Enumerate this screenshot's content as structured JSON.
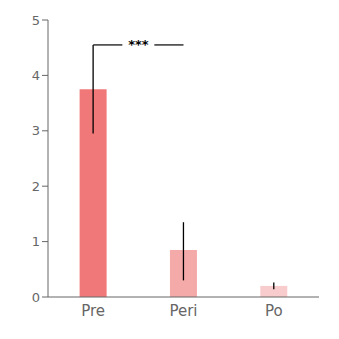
{
  "chart_data": {
    "type": "bar",
    "categories": [
      "Pre",
      "Peri",
      "Po"
    ],
    "values": [
      3.75,
      0.85,
      0.2
    ],
    "errors_upper": [
      0.8,
      0.5,
      0.06
    ],
    "errors_lower": [
      0.8,
      0.55,
      0.06
    ],
    "colors": [
      "#F07878",
      "#F5AAAA",
      "#F8CCCC"
    ],
    "ylim": [
      0,
      5
    ],
    "yticks": [
      0,
      1,
      2,
      3,
      4,
      5
    ],
    "grid": false,
    "annotations": [
      {
        "text": "***",
        "from": "Pre",
        "to": "Peri",
        "y": 4.55
      }
    ]
  }
}
